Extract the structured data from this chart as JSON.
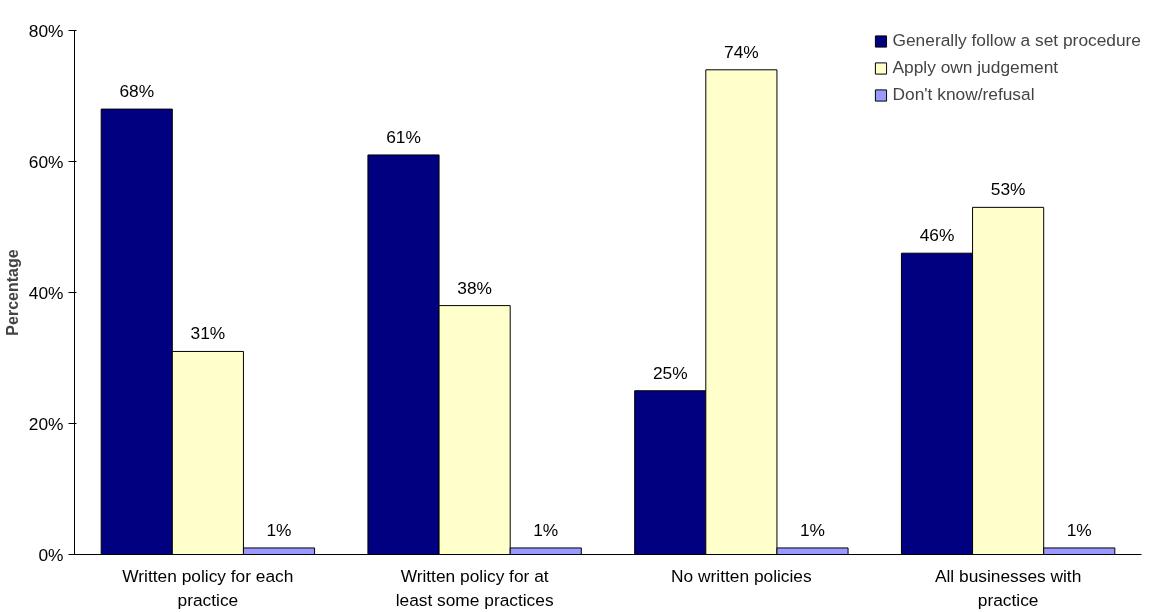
{
  "chart_data": {
    "type": "bar",
    "ylabel": "Percentage",
    "categories": [
      "Written policy for each practice",
      "Written policy for at least some practices",
      "No written policies",
      "All businesses with practice"
    ],
    "series": [
      {
        "name": "Generally follow a set procedure",
        "color": "#000080",
        "values": [
          68,
          61,
          25,
          46
        ],
        "value_labels": [
          "68%",
          "61%",
          "25%",
          "46%"
        ]
      },
      {
        "name": "Apply own judgement",
        "color": "#ffffcc",
        "values": [
          31,
          38,
          74,
          53
        ],
        "value_labels": [
          "31%",
          "38%",
          "74%",
          "53%"
        ]
      },
      {
        "name": "Don't know/refusal",
        "color": "#9999ff",
        "values": [
          1,
          1,
          1,
          1
        ],
        "value_labels": [
          "1%",
          "1%",
          "1%",
          "1%"
        ]
      }
    ],
    "ylim": [
      0,
      80
    ],
    "yticks": [
      {
        "value": 0,
        "label": "0%"
      },
      {
        "value": 20,
        "label": "20%"
      },
      {
        "value": 40,
        "label": "40%"
      },
      {
        "value": 60,
        "label": "60%"
      },
      {
        "value": 80,
        "label": "80%"
      }
    ],
    "grid": false,
    "legend": "top right"
  }
}
